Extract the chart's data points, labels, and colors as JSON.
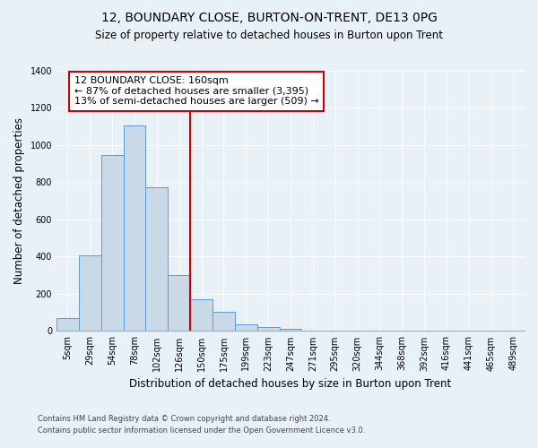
{
  "title": "12, BOUNDARY CLOSE, BURTON-ON-TRENT, DE13 0PG",
  "subtitle": "Size of property relative to detached houses in Burton upon Trent",
  "xlabel": "Distribution of detached houses by size in Burton upon Trent",
  "ylabel": "Number of detached properties",
  "footnote1": "Contains HM Land Registry data © Crown copyright and database right 2024.",
  "footnote2": "Contains public sector information licensed under the Open Government Licence v3.0.",
  "categories": [
    "5sqm",
    "29sqm",
    "54sqm",
    "78sqm",
    "102sqm",
    "126sqm",
    "150sqm",
    "175sqm",
    "199sqm",
    "223sqm",
    "247sqm",
    "271sqm",
    "295sqm",
    "320sqm",
    "344sqm",
    "368sqm",
    "392sqm",
    "416sqm",
    "441sqm",
    "465sqm",
    "489sqm"
  ],
  "bar_values": [
    70,
    405,
    945,
    1105,
    775,
    300,
    170,
    105,
    35,
    20,
    12,
    0,
    0,
    0,
    0,
    0,
    0,
    0,
    0,
    0,
    0
  ],
  "bar_color": "#c9d9e8",
  "bar_edge_color": "#5b9bd5",
  "vline_x_index": 6,
  "vline_color": "#cc0000",
  "annotation_text": "12 BOUNDARY CLOSE: 160sqm\n← 87% of detached houses are smaller (3,395)\n13% of semi-detached houses are larger (509) →",
  "annotation_box_color": "#ffffff",
  "annotation_box_edge_color": "#cc0000",
  "ylim": [
    0,
    1400
  ],
  "yticks": [
    0,
    200,
    400,
    600,
    800,
    1000,
    1200,
    1400
  ],
  "bg_color": "#e8f0f8",
  "plot_bg_color": "#e8f0f8",
  "grid_color": "#ffffff",
  "title_fontsize": 10,
  "subtitle_fontsize": 8.5,
  "axis_label_fontsize": 8.5,
  "tick_fontsize": 7,
  "annotation_fontsize": 8
}
